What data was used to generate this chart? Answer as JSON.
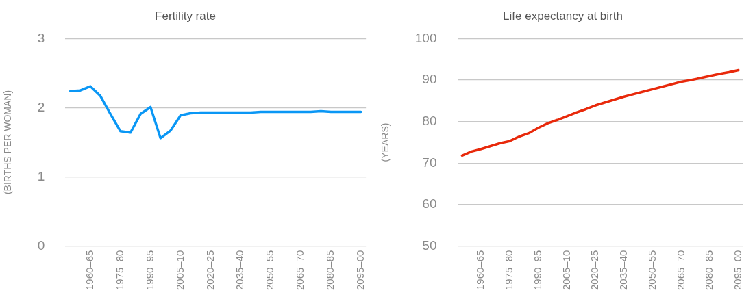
{
  "chart_data": [
    {
      "type": "line",
      "title": "Fertility rate",
      "ylabel": "(BIRTHS PER WOMAN)",
      "categories": [
        null,
        null,
        "1960–65",
        null,
        null,
        "1975–80",
        null,
        null,
        "1990–95",
        null,
        null,
        "2005–10",
        null,
        null,
        "2020–25",
        null,
        null,
        "2035–40",
        null,
        null,
        "2050–55",
        null,
        null,
        "2065–70",
        null,
        null,
        "2080–85",
        null,
        null,
        "2095–00"
      ],
      "series": [
        {
          "color": "#0a97f5",
          "values": [
            2.24,
            2.25,
            2.31,
            2.17,
            1.91,
            1.66,
            1.64,
            1.91,
            2.01,
            1.56,
            1.67,
            1.89,
            1.92,
            1.93,
            1.93,
            1.93,
            1.93,
            1.93,
            1.93,
            1.94,
            1.94,
            1.94,
            1.94,
            1.94,
            1.94,
            1.95,
            1.94,
            1.94,
            1.94,
            1.94
          ]
        }
      ],
      "ylim": [
        0,
        3
      ],
      "yticks": [
        0,
        1,
        2,
        3
      ],
      "grid": "y",
      "legend": false,
      "marker": "none",
      "line_style": "solid"
    },
    {
      "type": "line",
      "title": "Life expectancy at birth",
      "ylabel": "(YEARS)",
      "categories": [
        null,
        null,
        "1960–65",
        null,
        null,
        "1975–80",
        null,
        null,
        "1990–95",
        null,
        null,
        "2005–10",
        null,
        null,
        "2020–25",
        null,
        null,
        "2035–40",
        null,
        null,
        "2050–55",
        null,
        null,
        "2065–70",
        null,
        null,
        "2080–85",
        null,
        null,
        "2095–00"
      ],
      "series": [
        {
          "color": "#e8290b",
          "values": [
            71.8,
            72.8,
            73.4,
            74.1,
            74.8,
            75.3,
            76.4,
            77.2,
            78.5,
            79.6,
            80.4,
            81.3,
            82.2,
            83.0,
            83.9,
            84.6,
            85.3,
            86.0,
            86.6,
            87.2,
            87.8,
            88.4,
            89.0,
            89.6,
            90.0,
            90.5,
            91.0,
            91.5,
            91.9,
            92.4
          ]
        }
      ],
      "ylim": [
        50,
        100
      ],
      "yticks": [
        50,
        60,
        70,
        80,
        90,
        100
      ],
      "grid": "y",
      "legend": false,
      "marker": "none",
      "line_style": "solid"
    }
  ]
}
